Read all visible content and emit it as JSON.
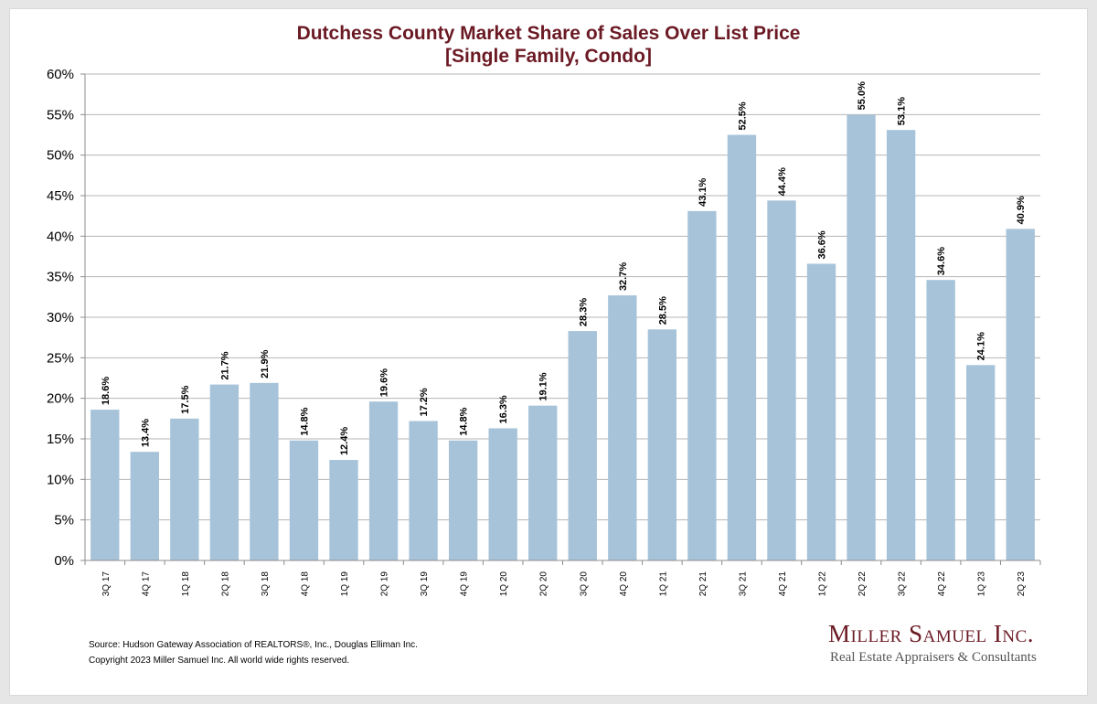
{
  "chart_data": {
    "type": "bar",
    "title": "Dutchess County Market Share of Sales Over List Price",
    "subtitle": "[Single Family, Condo]",
    "categories": [
      "3Q 17",
      "4Q 17",
      "1Q 18",
      "2Q 18",
      "3Q 18",
      "4Q 18",
      "1Q 19",
      "2Q 19",
      "3Q 19",
      "4Q 19",
      "1Q 20",
      "2Q 20",
      "3Q 20",
      "4Q 20",
      "1Q 21",
      "2Q 21",
      "3Q 21",
      "4Q 21",
      "1Q 22",
      "2Q 22",
      "3Q 22",
      "4Q 22",
      "1Q 23",
      "2Q 23"
    ],
    "values": [
      18.6,
      13.4,
      17.5,
      21.7,
      21.9,
      14.8,
      12.4,
      19.6,
      17.2,
      14.8,
      16.3,
      19.1,
      28.3,
      32.7,
      28.5,
      43.1,
      52.5,
      44.4,
      36.6,
      55.0,
      53.1,
      34.6,
      24.1,
      40.9
    ],
    "value_labels": [
      "18.6%",
      "13.4%",
      "17.5%",
      "21.7%",
      "21.9%",
      "14.8%",
      "12.4%",
      "19.6%",
      "17.2%",
      "14.8%",
      "16.3%",
      "19.1%",
      "28.3%",
      "32.7%",
      "28.5%",
      "43.1%",
      "52.5%",
      "44.4%",
      "36.6%",
      "55.0%",
      "53.1%",
      "34.6%",
      "24.1%",
      "40.9%"
    ],
    "ylim": [
      0,
      60
    ],
    "yticks": [
      0,
      5,
      10,
      15,
      20,
      25,
      30,
      35,
      40,
      45,
      50,
      55,
      60
    ],
    "ytick_labels": [
      "0%",
      "5%",
      "10%",
      "15%",
      "20%",
      "25%",
      "30%",
      "35%",
      "40%",
      "45%",
      "50%",
      "55%",
      "60%"
    ],
    "xlabel": "",
    "ylabel": "",
    "grid": true,
    "colors": {
      "bar": "#a7c3d9",
      "title": "#6b1a24",
      "grid": "#b5b5b5",
      "axis": "#8c8c8c"
    }
  },
  "footer": {
    "source": "Source: Hudson Gateway Association of REALTORS®, Inc., Douglas Elliman Inc.",
    "copyright": "Copyright 2023 Miller Samuel Inc.  All world wide rights reserved."
  },
  "logo": {
    "name": "Miller Samuel Inc.",
    "tagline": "Real Estate Appraisers & Consultants"
  }
}
